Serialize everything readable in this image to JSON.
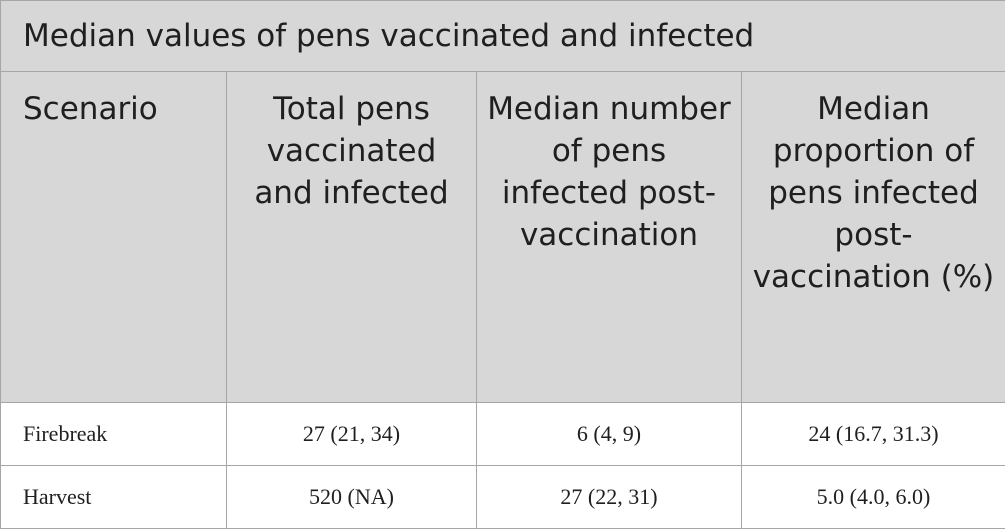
{
  "header": {
    "title": "Median values of pens vaccinated and infected"
  },
  "table": {
    "columns": [
      "Scenario",
      "Total pens vaccinated and infected",
      "Median number of pens infected post-vaccination",
      "Median proportion of pens infected post-vaccination (%)"
    ],
    "rows": [
      [
        "Firebreak",
        "27 (21, 34)",
        "6 (4, 9)",
        "24 (16.7, 31.3)"
      ],
      [
        "Harvest",
        "520 (NA)",
        "27 (22, 31)",
        "5.0 (4.0, 6.0)"
      ]
    ]
  }
}
